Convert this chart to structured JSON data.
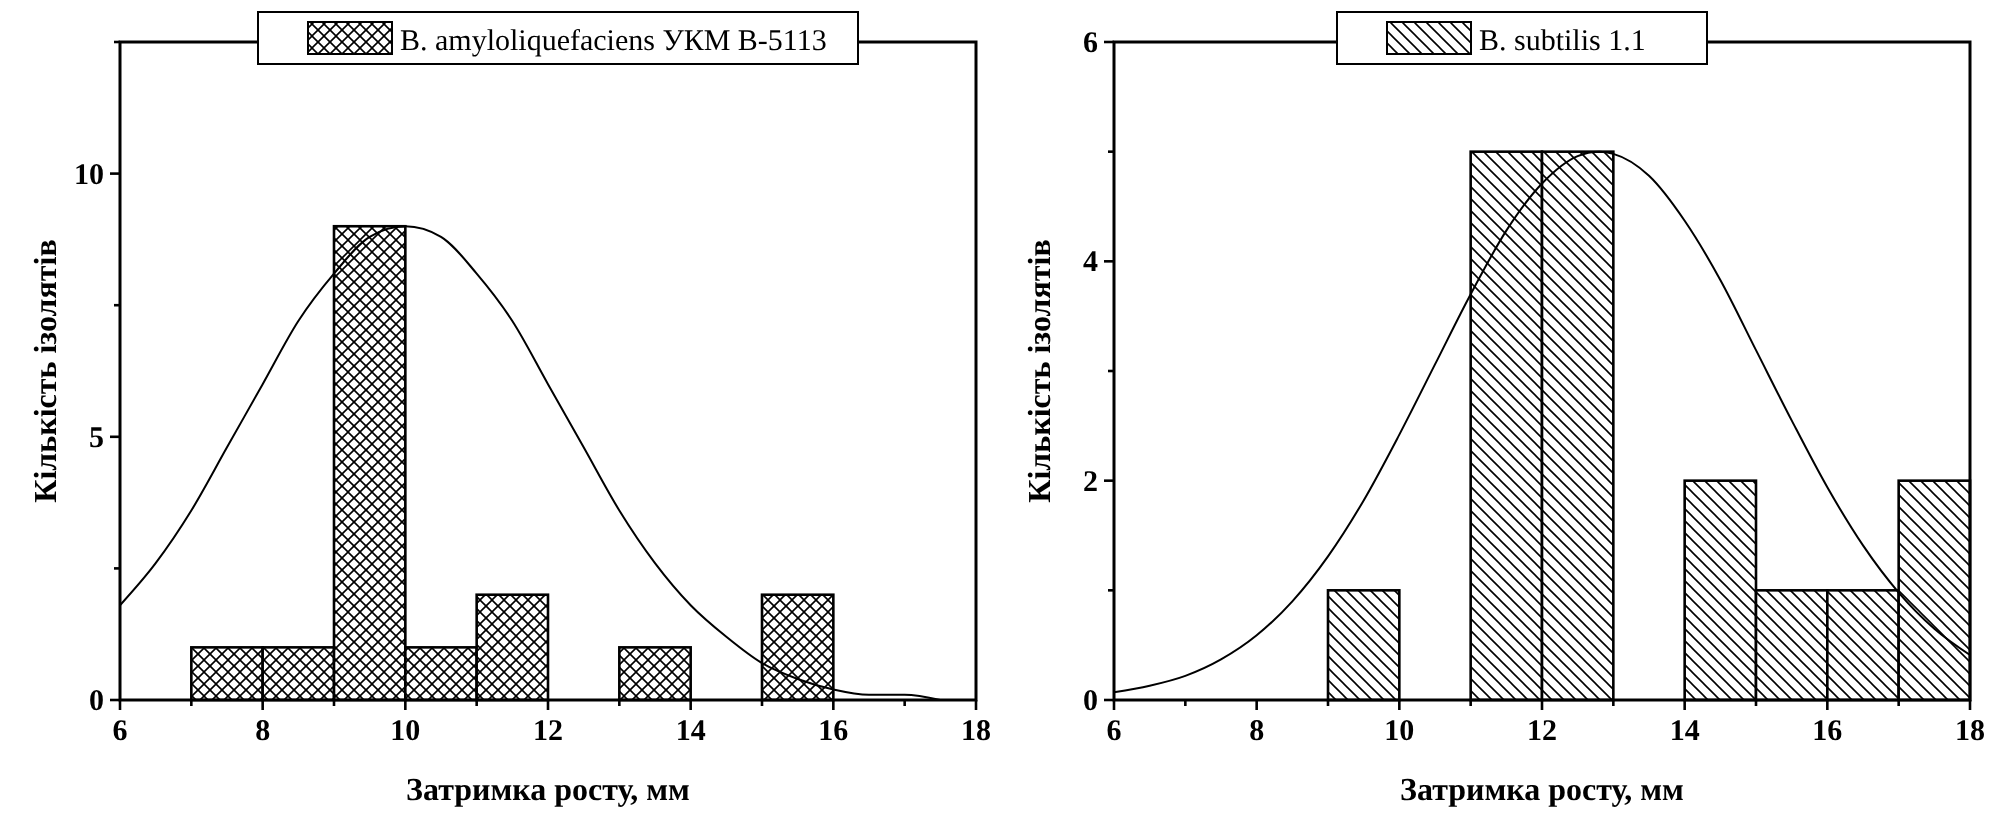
{
  "chart_data": [
    {
      "type": "histogram",
      "xlabel": "Затримка росту, мм",
      "ylabel": "Кількість ізолятів",
      "xlim": [
        6,
        18
      ],
      "ylim": [
        0,
        12.5
      ],
      "xticks": [
        6,
        {
          "value": 7,
          "label": null
        },
        8,
        {
          "value": 9,
          "label": null
        },
        10,
        {
          "value": 11,
          "label": null
        },
        12,
        {
          "value": 13,
          "label": null
        },
        14,
        {
          "value": 15,
          "label": null
        },
        16,
        {
          "value": 17,
          "label": null
        },
        18
      ],
      "yticks": [
        0,
        {
          "value": 2.5,
          "label": null
        },
        5,
        {
          "value": 7.5,
          "label": null
        },
        10,
        {
          "value": 12.5,
          "label": null
        }
      ],
      "legend": "top",
      "grid": false,
      "bins": [
        7,
        8,
        9,
        10,
        11,
        12,
        13,
        14,
        15,
        16
      ],
      "series": [
        {
          "name": "B. amyloliquefaciens УКМ В-5113",
          "color": "#000000",
          "values": [
            1,
            1,
            9,
            1,
            2,
            0,
            1,
            0,
            2
          ]
        },
        {
          "type": "line",
          "color": "#000000",
          "x": [
            6,
            6.5,
            7,
            7.5,
            8,
            8.5,
            9,
            9.5,
            10,
            10.5,
            11,
            11.5,
            12,
            12.5,
            13,
            13.5,
            14,
            14.5,
            15,
            15.5,
            16,
            16.5,
            17,
            17.5
          ],
          "values": [
            1.8,
            2.6,
            3.6,
            4.8,
            6.0,
            7.2,
            8.1,
            8.8,
            9.0,
            8.8,
            8.1,
            7.2,
            6.0,
            4.8,
            3.6,
            2.6,
            1.8,
            1.2,
            0.7,
            0.4,
            0.2,
            0.1,
            0.1,
            0.0
          ]
        }
      ]
    },
    {
      "type": "histogram",
      "xlabel": "Затримка росту, мм",
      "ylabel": "Кількість ізолятів",
      "xlim": [
        6,
        18
      ],
      "ylim": [
        0,
        6
      ],
      "xticks": [
        6,
        {
          "value": 7,
          "label": null
        },
        8,
        {
          "value": 9,
          "label": null
        },
        10,
        {
          "value": 11,
          "label": null
        },
        12,
        {
          "value": 13,
          "label": null
        },
        14,
        {
          "value": 15,
          "label": null
        },
        16,
        {
          "value": 17,
          "label": null
        },
        18
      ],
      "yticks": [
        0,
        {
          "value": 1,
          "label": null
        },
        2,
        {
          "value": 3,
          "label": null
        },
        4,
        {
          "value": 5,
          "label": null
        },
        6
      ],
      "legend": "top",
      "grid": false,
      "bins": [
        9,
        10,
        11,
        12,
        13,
        14,
        15,
        16,
        17,
        18
      ],
      "series": [
        {
          "name": "B. subtilis 1.1",
          "color": "#000000",
          "values": [
            1,
            0,
            5,
            5,
            0,
            2,
            1,
            1,
            2
          ]
        },
        {
          "type": "line",
          "color": "#000000",
          "x": [
            6,
            6.5,
            7,
            7.5,
            8,
            8.5,
            9,
            9.5,
            10,
            10.5,
            11,
            11.5,
            12,
            12.5,
            12.8,
            13,
            13.5,
            14,
            14.5,
            15,
            15.5,
            16,
            16.5,
            17,
            17.5,
            18
          ],
          "values": [
            0.07,
            0.13,
            0.22,
            0.37,
            0.59,
            0.9,
            1.31,
            1.82,
            2.42,
            3.06,
            3.7,
            4.28,
            4.71,
            4.96,
            5,
            4.98,
            4.78,
            4.37,
            3.83,
            3.19,
            2.55,
            1.94,
            1.41,
            0.98,
            0.65,
            0.41
          ]
        }
      ]
    }
  ]
}
